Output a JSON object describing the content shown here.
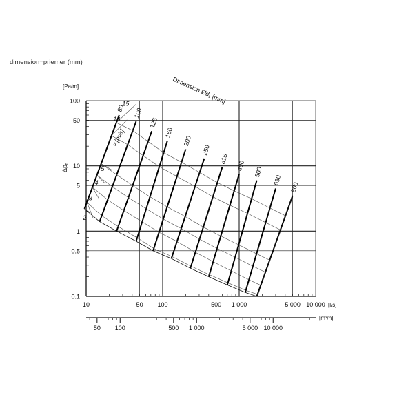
{
  "caption": "dimension=priemer (mm)",
  "chart_data": {
    "type": "nomogram",
    "title": "Dimension Ød₁ [mm]",
    "x_axis": {
      "unit": "[l/s]",
      "scale": "log",
      "range": [
        10,
        10000
      ],
      "ticks": [
        {
          "v": 10,
          "label": "10"
        },
        {
          "v": 50,
          "label": "50"
        },
        {
          "v": 100,
          "label": "100"
        },
        {
          "v": 500,
          "label": "500"
        },
        {
          "v": 1000,
          "label": "1 000"
        },
        {
          "v": 5000,
          "label": "5 000"
        },
        {
          "v": 10000,
          "label": "10 000"
        }
      ]
    },
    "x2_axis": {
      "unit": "[m³/h]",
      "scale": "log",
      "ticks": [
        {
          "v": 50,
          "label": "50"
        },
        {
          "v": 100,
          "label": "100"
        },
        {
          "v": 500,
          "label": "500"
        },
        {
          "v": 1000,
          "label": "1 000"
        },
        {
          "v": 5000,
          "label": "5 000"
        },
        {
          "v": 10000,
          "label": "10 000"
        }
      ]
    },
    "y_axis": {
      "unit": "[Pa/m]",
      "label": "Δp_t",
      "scale": "log",
      "range": [
        0.1,
        100
      ],
      "ticks": [
        {
          "v": 100,
          "label": "100"
        },
        {
          "v": 50,
          "label": "50"
        },
        {
          "v": 10,
          "label": "10"
        },
        {
          "v": 5,
          "label": "5"
        },
        {
          "v": 1,
          "label": "1"
        },
        {
          "v": 0.5,
          "label": "0.5"
        },
        {
          "v": 0.1,
          "label": "0.1"
        }
      ]
    },
    "grid": true,
    "velocity_label": "v [m/s]",
    "diameters": [
      {
        "d": "80",
        "top": [
          27,
          60
        ],
        "bottom": [
          9.5,
          2.2
        ]
      },
      {
        "d": "100",
        "top": [
          45,
          48
        ],
        "bottom": [
          15,
          1.4
        ]
      },
      {
        "d": "125",
        "top": [
          72,
          34
        ],
        "bottom": [
          25,
          1.0
        ]
      },
      {
        "d": "160",
        "top": [
          115,
          24
        ],
        "bottom": [
          45,
          0.7
        ]
      },
      {
        "d": "200",
        "top": [
          200,
          18
        ],
        "bottom": [
          75,
          0.5
        ]
      },
      {
        "d": "250",
        "top": [
          350,
          13
        ],
        "bottom": [
          130,
          0.38
        ]
      },
      {
        "d": "315",
        "top": [
          600,
          9.5
        ],
        "bottom": [
          230,
          0.27
        ]
      },
      {
        "d": "400",
        "top": [
          1000,
          7.5
        ],
        "bottom": [
          400,
          0.2
        ]
      },
      {
        "d": "500",
        "top": [
          1700,
          6
        ],
        "bottom": [
          700,
          0.15
        ]
      },
      {
        "d": "630",
        "top": [
          3000,
          4.5
        ],
        "bottom": [
          1200,
          0.115
        ]
      },
      {
        "d": "800",
        "top": [
          5000,
          3.5
        ],
        "bottom": [
          1700,
          0.1
        ]
      }
    ],
    "velocities": [
      {
        "v": "15",
        "label_at": [
          38,
          90
        ]
      },
      {
        "v": "10",
        "label_at": [
          29,
          52
        ]
      },
      {
        "v": "5",
        "label_at": [
          18,
          9
        ]
      },
      {
        "v": "4",
        "label_at": [
          15,
          5.5
        ]
      },
      {
        "v": "3",
        "label_at": [
          12.5,
          3.2
        ]
      },
      {
        "v": "2",
        "label_at": [
          10.5,
          1.6
        ]
      }
    ]
  }
}
